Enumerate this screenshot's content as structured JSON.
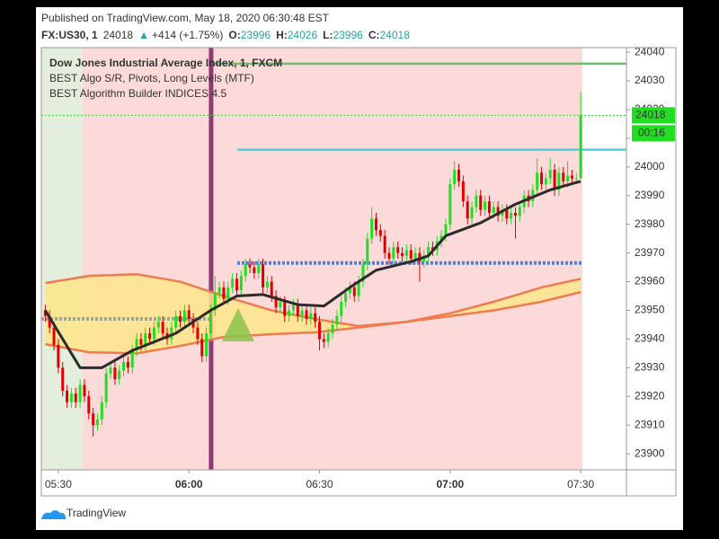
{
  "header": {
    "published": "Published on TradingView.com, May 18, 2020 06:30:48 EST",
    "symbol": "FX:US30, 1",
    "price": 24018,
    "arrow": "▲",
    "change": "+414 (+1.75%)",
    "fields": [
      {
        "label": "O:",
        "value": 23996
      },
      {
        "label": "H:",
        "value": 24026
      },
      {
        "label": "L:",
        "value": 23996
      },
      {
        "label": "C:",
        "value": 24018
      }
    ]
  },
  "footer": {
    "brand": "TradingView"
  },
  "chart_data": {
    "type": "candlestick",
    "legend": [
      "Dow Jones Industrial Average Index, 1, FXCM",
      "BEST Algo S/R, Pivots, Long Levels (MTF)",
      "BEST Algorithm Builder INDICES 4.5"
    ],
    "up_color": "#22dd22",
    "down_color": "#e00000",
    "x": [
      327,
      328,
      329,
      330,
      331,
      332,
      333,
      334,
      335,
      336,
      337,
      338,
      339,
      340,
      341,
      342,
      343,
      344,
      345,
      346,
      347,
      348,
      349,
      350,
      351,
      352,
      353,
      354,
      355,
      356,
      357,
      358,
      359,
      360,
      361,
      362,
      363,
      364,
      365,
      366,
      367,
      368,
      369,
      370,
      371,
      372,
      373,
      374,
      375,
      376,
      377,
      378,
      379,
      380,
      381,
      382,
      383,
      384,
      385,
      386,
      387,
      388,
      389,
      390,
      391,
      392,
      393,
      394,
      395,
      396,
      397,
      398,
      399,
      400,
      401,
      402,
      403,
      404,
      405,
      406,
      407,
      408,
      409,
      410,
      411,
      412,
      413,
      414,
      415,
      416,
      417,
      418,
      419,
      420,
      421,
      422,
      423,
      424,
      425,
      426,
      427,
      428,
      429,
      430,
      431,
      432,
      433,
      434,
      435,
      436,
      437,
      438,
      439,
      440,
      441,
      442,
      443,
      444,
      445,
      446,
      447,
      448,
      449,
      450
    ],
    "open": [
      23950,
      23948,
      23944,
      23938,
      23930,
      23922,
      23918,
      23921,
      23918,
      23924,
      23920,
      23914,
      23910,
      23912,
      23918,
      23928,
      23930,
      23926,
      23929,
      23932,
      23930,
      23936,
      23940,
      23938,
      23942,
      23940,
      23944,
      23946,
      23942,
      23940,
      23944,
      23948,
      23946,
      23950,
      23947,
      23944,
      23940,
      23934,
      23942,
      23950,
      23956,
      23958,
      23954,
      23958,
      23961,
      23957,
      23962,
      23966,
      23965,
      23963,
      23966,
      23958,
      23960,
      23955,
      23951,
      23953,
      23948,
      23950,
      23952,
      23948,
      23950,
      23947,
      23949,
      23946,
      23940,
      23939,
      23942,
      23945,
      23948,
      23953,
      23956,
      23958,
      23955,
      23960,
      23966,
      23975,
      23982,
      23978,
      23976,
      23970,
      23968,
      23972,
      23970,
      23969,
      23971,
      23968,
      23970,
      23967,
      23969,
      23972,
      23971,
      23974,
      23976,
      23980,
      23994,
      23999,
      23995,
      23988,
      23982,
      23986,
      23990,
      23985,
      23988,
      23984,
      23986,
      23983,
      23985,
      23982,
      23984,
      23983,
      23986,
      23990,
      23988,
      23992,
      23998,
      23994,
      23996,
      23999,
      23992,
      23998,
      23995,
      23997,
      23996,
      23996
    ],
    "high": [
      23952,
      23950,
      23946,
      23940,
      23932,
      23924,
      23923,
      23923,
      23926,
      23926,
      23922,
      23916,
      23914,
      23920,
      23930,
      23932,
      23932,
      23931,
      23934,
      23934,
      23938,
      23942,
      23942,
      23944,
      23944,
      23946,
      23948,
      23948,
      23944,
      23946,
      23950,
      23950,
      23952,
      23952,
      23949,
      23946,
      23942,
      23944,
      23952,
      23962,
      23960,
      23960,
      23960,
      23963,
      23963,
      23964,
      23968,
      23968,
      23967,
      23968,
      23968,
      23962,
      23962,
      23957,
      23955,
      23955,
      23952,
      23954,
      23954,
      23952,
      23952,
      23951,
      23951,
      23948,
      23942,
      23944,
      23947,
      23950,
      23955,
      23958,
      23960,
      23960,
      23962,
      23968,
      23977,
      23986,
      23984,
      23980,
      23978,
      23972,
      23974,
      23974,
      23972,
      23973,
      23973,
      23972,
      23972,
      23971,
      23974,
      23974,
      23976,
      23978,
      23982,
      23996,
      24002,
      24001,
      23997,
      23990,
      23988,
      23992,
      23992,
      23990,
      23990,
      23988,
      23988,
      23987,
      23987,
      23986,
      23986,
      23988,
      23992,
      23992,
      23994,
      24003,
      24000,
      23998,
      24003,
      24001,
      24000,
      24000,
      24002,
      23999,
      23998,
      24026
    ],
    "low": [
      23946,
      23942,
      23936,
      23928,
      23920,
      23916,
      23916,
      23916,
      23916,
      23918,
      23912,
      23906,
      23908,
      23910,
      23916,
      23926,
      23924,
      23924,
      23927,
      23928,
      23928,
      23934,
      23936,
      23936,
      23938,
      23938,
      23942,
      23940,
      23938,
      23938,
      23942,
      23944,
      23944,
      23945,
      23942,
      23938,
      23932,
      23932,
      23940,
      23948,
      23954,
      23952,
      23952,
      23956,
      23955,
      23955,
      23960,
      23963,
      23961,
      23961,
      23956,
      23956,
      23953,
      23949,
      23949,
      23946,
      23946,
      23948,
      23946,
      23946,
      23945,
      23945,
      23944,
      23936,
      23937,
      23937,
      23940,
      23943,
      23946,
      23951,
      23954,
      23953,
      23953,
      23958,
      23964,
      23973,
      23976,
      23974,
      23968,
      23966,
      23966,
      23968,
      23967,
      23967,
      23966,
      23966,
      23960,
      23965,
      23967,
      23969,
      23969,
      23972,
      23974,
      23978,
      23992,
      23993,
      23986,
      23980,
      23980,
      23984,
      23983,
      23983,
      23982,
      23982,
      23981,
      23981,
      23980,
      23980,
      23975,
      23981,
      23984,
      23986,
      23986,
      23990,
      23992,
      23992,
      23994,
      23990,
      23990,
      23993,
      23993,
      23994,
      23994,
      23996
    ],
    "close": [
      23948,
      23944,
      23938,
      23930,
      23922,
      23918,
      23921,
      23918,
      23924,
      23920,
      23914,
      23910,
      23912,
      23918,
      23928,
      23930,
      23926,
      23929,
      23932,
      23930,
      23936,
      23940,
      23938,
      23942,
      23940,
      23944,
      23946,
      23942,
      23940,
      23944,
      23948,
      23946,
      23950,
      23947,
      23944,
      23940,
      23934,
      23942,
      23950,
      23956,
      23958,
      23954,
      23958,
      23961,
      23957,
      23962,
      23966,
      23965,
      23963,
      23966,
      23958,
      23960,
      23955,
      23951,
      23953,
      23948,
      23950,
      23952,
      23948,
      23950,
      23947,
      23949,
      23946,
      23940,
      23939,
      23942,
      23945,
      23948,
      23953,
      23956,
      23958,
      23955,
      23960,
      23966,
      23975,
      23982,
      23978,
      23976,
      23970,
      23968,
      23972,
      23970,
      23969,
      23971,
      23968,
      23970,
      23967,
      23969,
      23972,
      23971,
      23974,
      23976,
      23980,
      23994,
      23999,
      23995,
      23988,
      23982,
      23986,
      23990,
      23985,
      23988,
      23984,
      23986,
      23983,
      23985,
      23982,
      23984,
      23983,
      23986,
      23990,
      23988,
      23992,
      23998,
      23994,
      23996,
      23999,
      23992,
      23998,
      23995,
      23997,
      23996,
      23996,
      24018
    ],
    "moving_average": {
      "color": "#2b2b2b",
      "x": [
        327,
        335,
        340,
        347,
        357,
        365,
        371,
        377,
        385,
        391,
        397,
        403,
        411,
        415,
        419,
        427,
        435,
        443,
        450
      ],
      "values": [
        23950,
        23930,
        23930,
        23936,
        23942,
        23950,
        23955,
        23955.5,
        23952,
        23951.5,
        23958,
        23964,
        23967,
        23969,
        23976,
        23980.5,
        23987,
        23992,
        23995
      ]
    },
    "band": {
      "line_color": "#f07b4f",
      "fill_color": "#fde58a",
      "x": [
        327,
        337,
        348,
        358,
        368,
        379,
        389,
        399,
        410,
        420,
        430,
        441,
        450
      ],
      "upper": [
        23959.5,
        23962,
        23962.6,
        23960,
        23955,
        23950,
        23947,
        23944.5,
        23946,
        23949,
        23953,
        23958,
        23961
      ],
      "lower": [
        23938.2,
        23935.4,
        23935,
        23937.6,
        23940.7,
        23941.7,
        23942.3,
        23944,
        23946,
        23948,
        23950,
        23953,
        23956.4
      ]
    },
    "regions": [
      {
        "from": 326.1,
        "to": 335.6,
        "color": "#e3efdc"
      },
      {
        "from": 335.6,
        "to": 450.4,
        "color": "#fcdada"
      }
    ],
    "marker_time": {
      "value": 365.1,
      "color": "#8e3a75"
    },
    "levels": [
      {
        "value": 24036,
        "from": 365.5,
        "to": 460.5,
        "color": "#6abf69",
        "dotted": false
      },
      {
        "value": 24006,
        "from": 371.1,
        "to": 460.5,
        "color": "#4dd0e1",
        "dotted": false
      },
      {
        "value": 23966.5,
        "from": 371.1,
        "to": 450.4,
        "color": "#4a7fe0",
        "dotted": true
      },
      {
        "value": 23947,
        "from": 326.1,
        "to": 365.1,
        "color": "#9aa79a",
        "dotted": true
      }
    ],
    "last_price": {
      "value": 24018,
      "countdown": "00:16",
      "color": "#22dd22"
    },
    "xlim": [
      326.1,
      460.5
    ],
    "xticks": [
      {
        "value": 330,
        "label": "05:30"
      },
      {
        "value": 360,
        "label": "06:00"
      },
      {
        "value": 390,
        "label": "06:30"
      },
      {
        "value": 420,
        "label": "07:00"
      },
      {
        "value": 450,
        "label": "07:30"
      }
    ],
    "xticks_bold": [
      false,
      true,
      false,
      true,
      false
    ],
    "ylim": [
      23894.4,
      24041.6
    ],
    "yticks": [
      24040,
      24030,
      24020,
      24010,
      24000,
      23990,
      23980,
      23970,
      23960,
      23950,
      23940,
      23930,
      23920,
      23910,
      23900
    ]
  }
}
